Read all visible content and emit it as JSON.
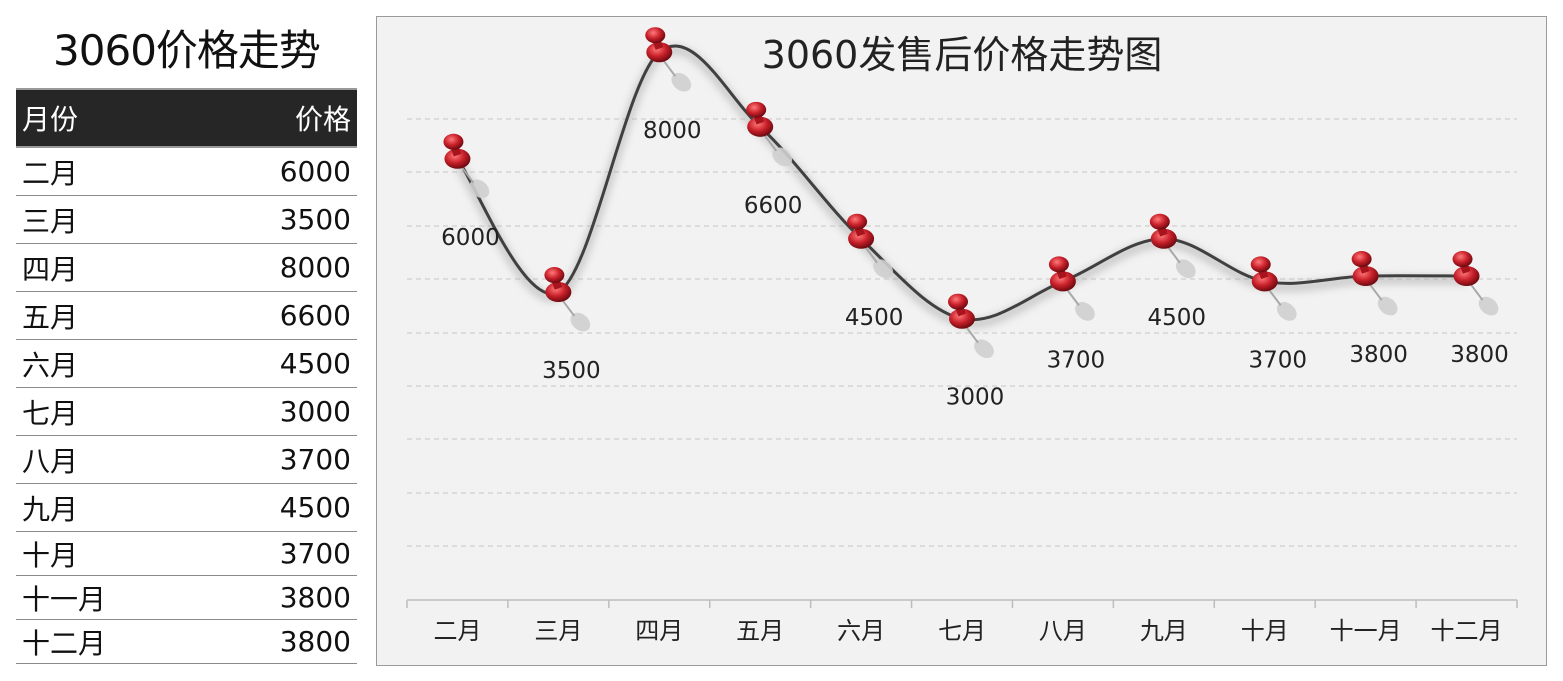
{
  "table": {
    "title": "3060价格走势",
    "header_month": "月份",
    "header_price": "价格",
    "rows": [
      {
        "month": "二月",
        "price": "6000"
      },
      {
        "month": "三月",
        "price": "3500"
      },
      {
        "month": "四月",
        "price": "8000"
      },
      {
        "month": "五月",
        "price": "6600"
      },
      {
        "month": "六月",
        "price": "4500"
      },
      {
        "month": "七月",
        "price": "3000"
      },
      {
        "month": "八月",
        "price": "3700"
      },
      {
        "month": "九月",
        "price": "4500"
      },
      {
        "month": "十月",
        "price": "3700"
      },
      {
        "month": "十一月",
        "price": "3800"
      },
      {
        "month": "十二月",
        "price": "3800"
      }
    ]
  },
  "chart_data": {
    "type": "line",
    "title": "3060发售后价格走势图",
    "categories": [
      "二月",
      "三月",
      "四月",
      "五月",
      "六月",
      "七月",
      "八月",
      "九月",
      "十月",
      "十一月",
      "十二月"
    ],
    "values": [
      6000,
      3500,
      8000,
      6600,
      4500,
      3000,
      3700,
      4500,
      3700,
      3800,
      3800
    ],
    "grid": true,
    "smooth": true,
    "colors": {
      "line": "#404040",
      "marker": "#c0202a",
      "background": "#f2f2f2",
      "grid": "#d0d0d0"
    }
  }
}
